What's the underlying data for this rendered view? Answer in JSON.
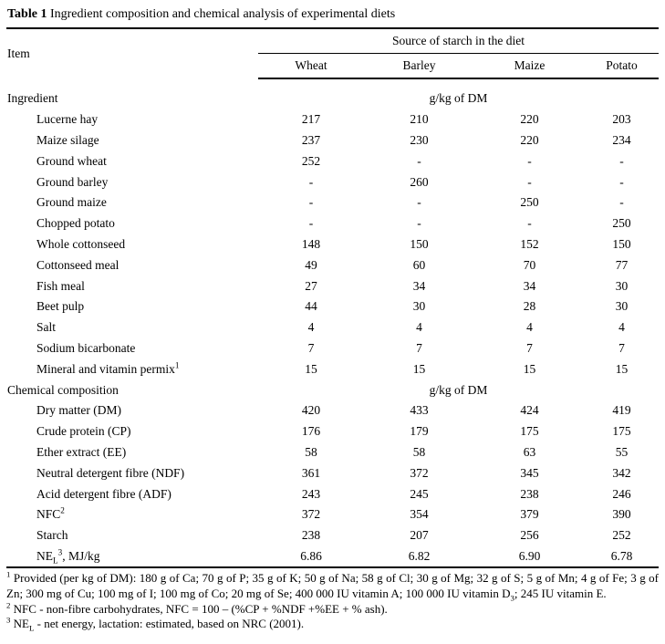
{
  "title": {
    "label": "Table 1",
    "text": " Ingredient composition and chemical analysis of experimental diets"
  },
  "table": {
    "item_header": "Item",
    "group_header": "Source of starch in the diet",
    "columns": [
      "Wheat",
      "Barley",
      "Maize",
      "Potato"
    ],
    "sections": [
      {
        "label": "Ingredient",
        "unit": "g/kg of DM",
        "rows": [
          {
            "item": "Lucerne hay",
            "values": [
              "217",
              "210",
              "220",
              "203"
            ]
          },
          {
            "item": "Maize silage",
            "values": [
              "237",
              "230",
              "220",
              "234"
            ]
          },
          {
            "item": "Ground wheat",
            "values": [
              "252",
              "-",
              "-",
              "-"
            ]
          },
          {
            "item": "Ground barley",
            "values": [
              "-",
              "260",
              "-",
              "-"
            ]
          },
          {
            "item": "Ground maize",
            "values": [
              "-",
              "-",
              "250",
              "-"
            ]
          },
          {
            "item": "Chopped potato",
            "values": [
              "-",
              "-",
              "-",
              "250"
            ]
          },
          {
            "item": "Whole cottonseed",
            "values": [
              "148",
              "150",
              "152",
              "150"
            ]
          },
          {
            "item": "Cottonseed meal",
            "values": [
              "49",
              "60",
              "70",
              "77"
            ]
          },
          {
            "item": "Fish meal",
            "values": [
              "27",
              "34",
              "34",
              "30"
            ]
          },
          {
            "item": "Beet pulp",
            "values": [
              "44",
              "30",
              "28",
              "30"
            ]
          },
          {
            "item": "Salt",
            "values": [
              "4",
              "4",
              "4",
              "4"
            ]
          },
          {
            "item": "Sodium bicarbonate",
            "values": [
              "7",
              "7",
              "7",
              "7"
            ]
          },
          {
            "item": "Mineral and vitamin permix^{1}",
            "values": [
              "15",
              "15",
              "15",
              "15"
            ]
          }
        ]
      },
      {
        "label": "Chemical composition",
        "unit": "g/kg of DM",
        "rows": [
          {
            "item": "Dry matter (DM)",
            "values": [
              "420",
              "433",
              "424",
              "419"
            ]
          },
          {
            "item": "Crude protein (CP)",
            "values": [
              "176",
              "179",
              "175",
              "175"
            ]
          },
          {
            "item": "Ether extract (EE)",
            "values": [
              "58",
              "58",
              "63",
              "55"
            ]
          },
          {
            "item": "Neutral detergent fibre (NDF)",
            "values": [
              "361",
              "372",
              "345",
              "342"
            ]
          },
          {
            "item": "Acid detergent fibre (ADF)",
            "values": [
              "243",
              "245",
              "238",
              "246"
            ]
          },
          {
            "item": "NFC^{2}",
            "values": [
              "372",
              "354",
              "379",
              "390"
            ]
          },
          {
            "item": "Starch",
            "values": [
              "238",
              "207",
              "256",
              "252"
            ]
          },
          {
            "item": "NE_{L}^{3}, MJ/kg",
            "values": [
              "6.86",
              "6.82",
              "6.90",
              "6.78"
            ]
          }
        ]
      }
    ]
  },
  "footnotes": [
    "^{1} Provided (per kg of DM): 180 g of Ca; 70 g of P; 35 g of K; 50 g of Na; 58 g of Cl; 30 g of Mg; 32 g of S; 5 g of Mn; 4 g of Fe; 3 g of Zn; 300 mg of Cu; 100 mg of I; 100 mg of Co; 20 mg of Se; 400 000 IU vitamin A; 100 000 IU vitamin D_{3}; 245 IU vitamin E.",
    "^{2} NFC - non-fibre carbohydrates, NFC = 100 – (%CP + %NDF +%EE + % ash).",
    "^{3} NE_{L} - net energy, lactation: estimated, based on NRC (2001)."
  ]
}
